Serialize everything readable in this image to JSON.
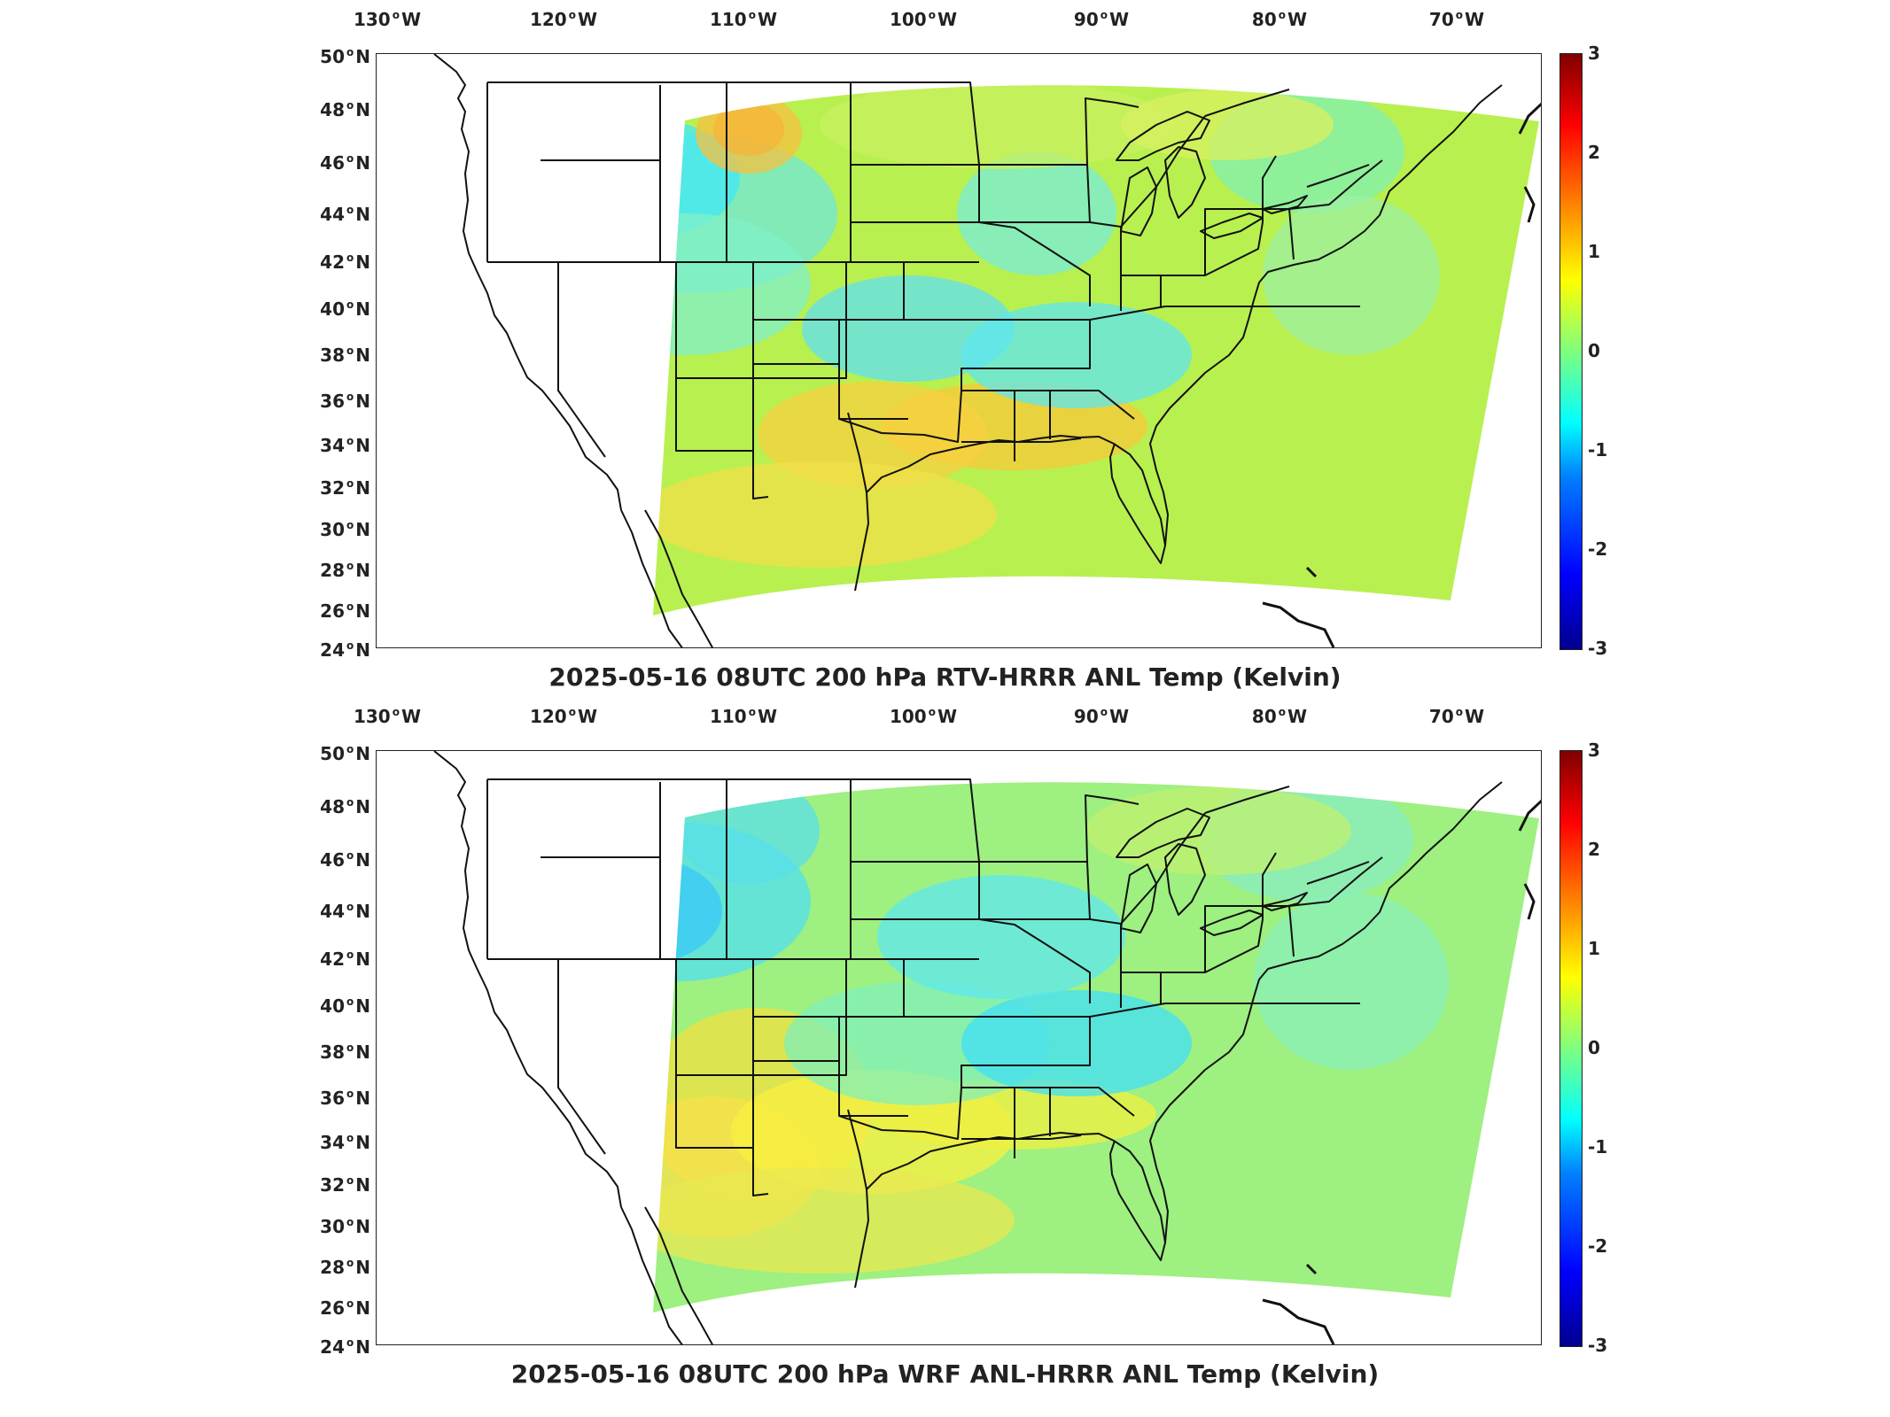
{
  "figure": {
    "colorbar_ticks": [
      "3",
      "2",
      "1",
      "0",
      "-1",
      "-2",
      "-3"
    ],
    "lon_ticks": [
      "130",
      "120",
      "110",
      "100",
      "90",
      "80",
      "70"
    ],
    "lon_suffix": "W",
    "lat_ticks": [
      "50",
      "48",
      "46",
      "44",
      "42",
      "40",
      "38",
      "36",
      "34",
      "32",
      "30",
      "28",
      "26",
      "24"
    ],
    "lat_suffix": "N",
    "colormap": [
      "#00008f",
      "#0000ff",
      "#0080ff",
      "#00ffff",
      "#7fff7f",
      "#ffff00",
      "#ff8000",
      "#ff0000",
      "#800000"
    ]
  },
  "panels": [
    {
      "title": "2025-05-16 08UTC 200 hPa RTV-HRRR ANL Temp (Kelvin)",
      "dominant_field_color": "#b8f050",
      "warm_regions": "northern plains, Texas Gulf coast",
      "cool_regions": "Wyoming, Kansas/Missouri, Carolinas, Pennsylvania"
    },
    {
      "title": "2025-05-16 08UTC 200 hPa WRF ANL-HRRR ANL Temp (Kelvin)",
      "dominant_field_color": "#9ef080",
      "warm_regions": "New Mexico/Texas, Gulf coast",
      "cool_regions": "Wyoming/Montana, Ohio valley, Carolinas"
    }
  ]
}
